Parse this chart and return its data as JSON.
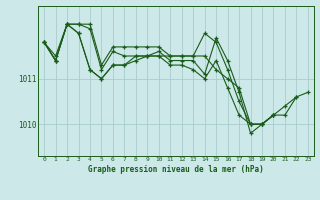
{
  "title": "Graphe pression niveau de la mer (hPa)",
  "bg_color": "#cce8e8",
  "grid_color": "#aacccc",
  "line_color": "#1a5c1a",
  "marker_color": "#1a5c1a",
  "xlim": [
    -0.5,
    23.5
  ],
  "ylim": [
    1009.3,
    1012.6
  ],
  "yticks": [
    1010,
    1011
  ],
  "xticks": [
    0,
    1,
    2,
    3,
    4,
    5,
    6,
    7,
    8,
    9,
    10,
    11,
    12,
    13,
    14,
    15,
    16,
    17,
    18,
    19,
    20,
    21,
    22,
    23
  ],
  "series": [
    [
      1011.8,
      1011.5,
      1012.2,
      1012.2,
      1012.2,
      1011.3,
      1011.7,
      1011.7,
      1011.7,
      1011.7,
      1011.7,
      1011.5,
      1011.5,
      1011.5,
      1011.5,
      1011.2,
      1011.0,
      1010.8,
      1010.0,
      1010.0,
      1010.2,
      1010.2,
      1010.6,
      null
    ],
    [
      1011.8,
      1011.4,
      1012.2,
      1012.2,
      1012.1,
      1011.2,
      1011.6,
      1011.5,
      1011.5,
      1011.5,
      1011.6,
      1011.4,
      1011.4,
      1011.4,
      1011.1,
      1011.9,
      1011.4,
      1010.7,
      1009.8,
      1010.0,
      1010.2,
      null,
      null,
      null
    ],
    [
      1011.8,
      1011.4,
      1012.2,
      1012.0,
      1011.2,
      1011.0,
      1011.3,
      1011.3,
      1011.4,
      1011.5,
      1011.5,
      1011.3,
      1011.3,
      1011.2,
      1011.0,
      1011.4,
      1010.8,
      1010.2,
      1010.0,
      1010.0,
      1010.2,
      null,
      null,
      null
    ],
    [
      1011.8,
      1011.4,
      1012.2,
      1012.0,
      1011.2,
      1011.0,
      1011.3,
      1011.3,
      1011.5,
      1011.5,
      1011.5,
      1011.5,
      1011.5,
      1011.5,
      1012.0,
      1011.8,
      1011.2,
      1010.5,
      1010.0,
      1010.0,
      1010.2,
      1010.4,
      1010.6,
      1010.7
    ]
  ]
}
